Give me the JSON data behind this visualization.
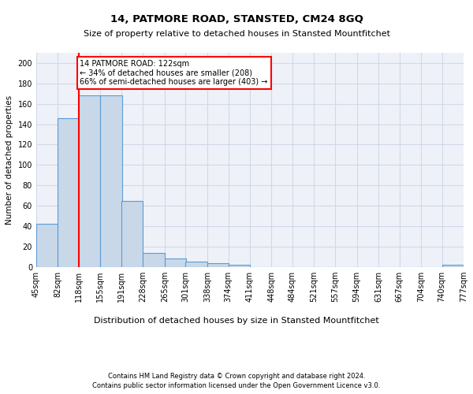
{
  "title_line1": "14, PATMORE ROAD, STANSTED, CM24 8GQ",
  "title_line2": "Size of property relative to detached houses in Stansted Mountfitchet",
  "xlabel": "Distribution of detached houses by size in Stansted Mountfitchet",
  "ylabel": "Number of detached properties",
  "footnote1": "Contains HM Land Registry data © Crown copyright and database right 2024.",
  "footnote2": "Contains public sector information licensed under the Open Government Licence v3.0.",
  "bin_edges": [
    45,
    82,
    118,
    155,
    191,
    228,
    265,
    301,
    338,
    374,
    411,
    448,
    484,
    521,
    557,
    594,
    631,
    667,
    704,
    740,
    777
  ],
  "bar_heights": [
    42,
    146,
    168,
    168,
    65,
    14,
    8,
    5,
    4,
    2,
    0,
    0,
    0,
    0,
    0,
    0,
    0,
    0,
    0,
    2
  ],
  "bar_color": "#c8d8e8",
  "bar_edge_color": "#5b9bd5",
  "grid_color": "#d0d8e8",
  "background_color": "#eef2f8",
  "annotation_text": "14 PATMORE ROAD: 122sqm\n← 34% of detached houses are smaller (208)\n66% of semi-detached houses are larger (403) →",
  "annotation_box_color": "white",
  "annotation_box_edge_color": "red",
  "red_line_x": 118,
  "ylim": [
    0,
    210
  ],
  "yticks": [
    0,
    20,
    40,
    60,
    80,
    100,
    120,
    140,
    160,
    180,
    200
  ]
}
